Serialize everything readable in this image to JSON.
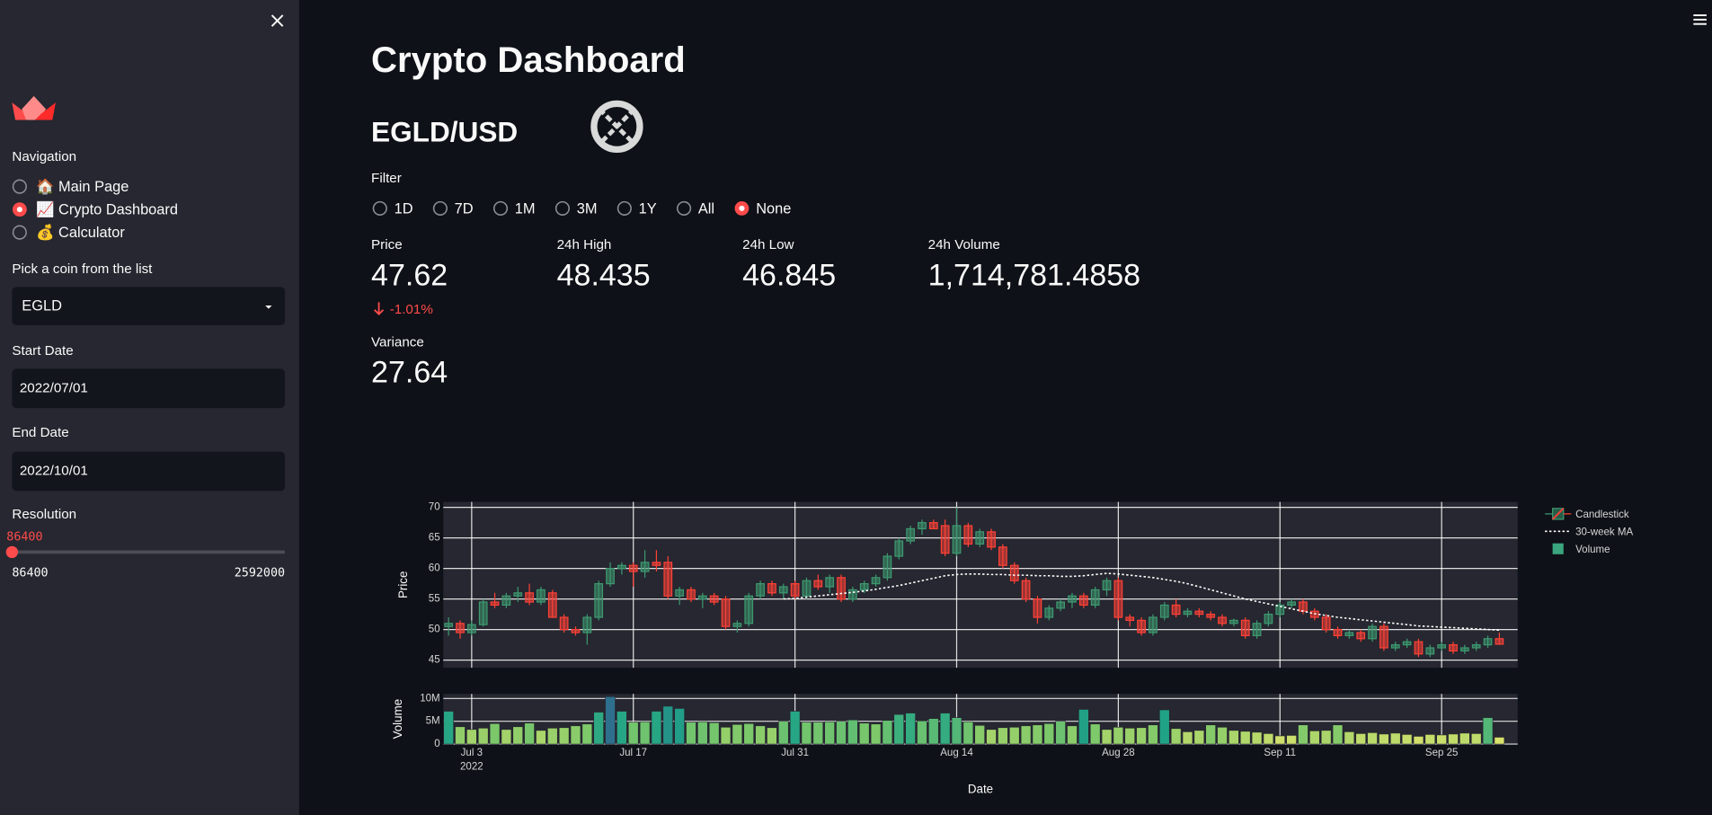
{
  "sidebar": {
    "nav_label": "Navigation",
    "nav_options": [
      "🏠 Main Page",
      "📈 Crypto Dashboard",
      "💰 Calculator"
    ],
    "nav_selected": 1,
    "coin_label": "Pick a coin from the list",
    "coin": "EGLD",
    "start_label": "Start Date",
    "start": "2022/07/01",
    "end_label": "End Date",
    "end": "2022/10/01",
    "resolution": {
      "label": "Resolution",
      "value": 86400,
      "min": 86400,
      "max": 2592000
    }
  },
  "main": {
    "title": "Crypto Dashboard",
    "pair": "EGLD/USD",
    "filter_label": "Filter",
    "filter_options": [
      "1D",
      "7D",
      "1M",
      "3M",
      "1Y",
      "All",
      "None"
    ],
    "filter_selected": 6,
    "metrics": [
      {
        "label": "Price",
        "value": "47.62",
        "delta": "-1.01%"
      },
      {
        "label": "24h High",
        "value": "48.435"
      },
      {
        "label": "24h Low",
        "value": "46.845"
      },
      {
        "label": "24h Volume",
        "value": "1,714,781.4858"
      }
    ],
    "variance": {
      "label": "Variance",
      "value": "27.64"
    }
  },
  "chart_data": {
    "type": "candlestick",
    "xlabel": "Date",
    "x_year": "2022",
    "xlim": [
      "2022-06-30T13:00:00Z",
      "2022-10-01T14:00:00Z"
    ],
    "xticks": [
      {
        "value": "2022-07-03",
        "label": "Jul 3"
      },
      {
        "value": "2022-07-17",
        "label": "Jul 17"
      },
      {
        "value": "2022-07-31",
        "label": "Jul 31"
      },
      {
        "value": "2022-08-14",
        "label": "Aug 14"
      },
      {
        "value": "2022-08-28",
        "label": "Aug 28"
      },
      {
        "value": "2022-09-11",
        "label": "Sep 11"
      },
      {
        "value": "2022-09-25",
        "label": "Sep 25"
      }
    ],
    "grid": true,
    "x": [
      "2022-07-01",
      "2022-07-02",
      "2022-07-03",
      "2022-07-04",
      "2022-07-05",
      "2022-07-06",
      "2022-07-07",
      "2022-07-08",
      "2022-07-09",
      "2022-07-10",
      "2022-07-11",
      "2022-07-12",
      "2022-07-13",
      "2022-07-14",
      "2022-07-15",
      "2022-07-16",
      "2022-07-17",
      "2022-07-18",
      "2022-07-19",
      "2022-07-20",
      "2022-07-21",
      "2022-07-22",
      "2022-07-23",
      "2022-07-24",
      "2022-07-25",
      "2022-07-26",
      "2022-07-27",
      "2022-07-28",
      "2022-07-29",
      "2022-07-30",
      "2022-07-31",
      "2022-08-01",
      "2022-08-02",
      "2022-08-03",
      "2022-08-04",
      "2022-08-05",
      "2022-08-06",
      "2022-08-07",
      "2022-08-08",
      "2022-08-09",
      "2022-08-10",
      "2022-08-11",
      "2022-08-12",
      "2022-08-13",
      "2022-08-14",
      "2022-08-15",
      "2022-08-16",
      "2022-08-17",
      "2022-08-18",
      "2022-08-19",
      "2022-08-20",
      "2022-08-21",
      "2022-08-22",
      "2022-08-23",
      "2022-08-24",
      "2022-08-25",
      "2022-08-26",
      "2022-08-27",
      "2022-08-28",
      "2022-08-29",
      "2022-08-30",
      "2022-08-31",
      "2022-09-01",
      "2022-09-02",
      "2022-09-03",
      "2022-09-04",
      "2022-09-05",
      "2022-09-06",
      "2022-09-07",
      "2022-09-08",
      "2022-09-09",
      "2022-09-10",
      "2022-09-11",
      "2022-09-12",
      "2022-09-13",
      "2022-09-14",
      "2022-09-15",
      "2022-09-16",
      "2022-09-17",
      "2022-09-18",
      "2022-09-19",
      "2022-09-20",
      "2022-09-21",
      "2022-09-22",
      "2022-09-23",
      "2022-09-24",
      "2022-09-25",
      "2022-09-26",
      "2022-09-27",
      "2022-09-28",
      "2022-09-29",
      "2022-09-30"
    ],
    "price": {
      "name": "Candlestick",
      "ylabel": "Price",
      "ylim": [
        43.75,
        70.9
      ],
      "yticks": [
        45,
        50,
        55,
        60,
        65,
        70
      ],
      "increasing_color": "#3d9970",
      "decreasing_color": "#ff4136",
      "open": [
        50.5,
        51,
        49.5,
        50.8,
        54.5,
        54,
        55.5,
        56,
        54.5,
        56,
        52,
        50,
        49.5,
        52,
        57.5,
        60,
        60.5,
        59.5,
        61,
        61,
        55.5,
        56.5,
        55,
        55.5,
        55,
        50.5,
        51,
        55.5,
        57.5,
        56,
        57.5,
        55.5,
        58,
        57,
        58.5,
        55,
        56.5,
        57.5,
        58.5,
        62,
        64.5,
        66.5,
        67.5,
        67,
        62.5,
        67,
        64,
        66,
        63.5,
        60.5,
        58,
        55,
        52,
        53.5,
        54.5,
        55.5,
        54,
        56.5,
        58,
        52,
        51.5,
        49.5,
        52,
        54,
        52.5,
        53,
        52.5,
        52,
        51,
        51.5,
        49,
        51,
        52.5,
        54,
        54.5,
        53,
        52,
        50,
        49,
        49.5,
        48.5,
        50.5,
        47,
        47.5,
        48,
        46,
        47,
        47.5,
        46.5,
        47,
        47.5,
        48.5
      ],
      "high": [
        52,
        51.5,
        51.5,
        55,
        56,
        56,
        57,
        57.5,
        57,
        56.5,
        52.5,
        50.5,
        52.5,
        58,
        61,
        61,
        61,
        63,
        63,
        62,
        57,
        57,
        56,
        56,
        55.5,
        51.5,
        56,
        58,
        58,
        57.5,
        58,
        58.5,
        59,
        59,
        59,
        57,
        58,
        59,
        62.5,
        65,
        67,
        68,
        68,
        68,
        70,
        67.5,
        66.5,
        66.5,
        64,
        61,
        58.5,
        55.5,
        54,
        55,
        56,
        56,
        57,
        58.5,
        58.5,
        52.5,
        52,
        52.5,
        54.5,
        55,
        53.5,
        53.5,
        53,
        52.5,
        51.8,
        52,
        51.5,
        53,
        54.5,
        55,
        55,
        53.5,
        52.5,
        50.5,
        50,
        50,
        51,
        51,
        48,
        48.5,
        48.5,
        47.5,
        48,
        48,
        47.5,
        48,
        49,
        49.5
      ],
      "low": [
        49,
        48.5,
        49,
        50.5,
        53.5,
        53.5,
        54.5,
        54,
        54,
        52,
        49.5,
        49,
        47.5,
        51.5,
        57,
        59,
        57,
        58.5,
        59.5,
        55,
        54,
        54.5,
        53.5,
        54,
        50,
        49.5,
        50.5,
        55,
        55.5,
        55,
        55,
        55,
        56.5,
        56,
        54.5,
        54.5,
        56,
        57,
        58,
        61.5,
        64,
        65.5,
        66.5,
        62,
        62,
        63.5,
        63.5,
        63,
        60,
        57.5,
        54.5,
        51,
        51.5,
        53,
        53.5,
        53.5,
        53.5,
        55.5,
        51.5,
        50.5,
        49,
        49,
        51.5,
        52,
        52,
        52,
        51.5,
        50.5,
        50.5,
        48.5,
        48.5,
        50.5,
        52,
        53.5,
        52.5,
        51.5,
        49.5,
        48.5,
        48.5,
        48,
        48,
        46.5,
        46.5,
        47,
        45.5,
        45.5,
        46.5,
        46,
        46,
        46.5,
        47,
        47.5
      ],
      "close": [
        51,
        49.5,
        50.8,
        54.5,
        54,
        55.5,
        56,
        54.5,
        56.5,
        52,
        50,
        49.5,
        52,
        57.5,
        60,
        60.5,
        59.5,
        61,
        60.5,
        55.5,
        56.5,
        55,
        55.5,
        54.5,
        50.5,
        51,
        55.5,
        57.5,
        56,
        57,
        55.5,
        58,
        57,
        58.5,
        55,
        56.5,
        57.5,
        58.5,
        62,
        64.5,
        66.5,
        67.5,
        66.5,
        62.5,
        67,
        64,
        66,
        63.5,
        60.5,
        58,
        55,
        52,
        53.5,
        54.5,
        55.5,
        54,
        56.5,
        58,
        52,
        51.5,
        49.5,
        52,
        54,
        52.5,
        53,
        52.5,
        52,
        51,
        51.5,
        49,
        51,
        52.5,
        54,
        54.5,
        53,
        52,
        50,
        49,
        49.5,
        48.5,
        50.5,
        47,
        47.5,
        48,
        46,
        47,
        47.5,
        46.5,
        47,
        47.5,
        48.5,
        47.6
      ]
    },
    "ma": {
      "name": "30-week MA",
      "color": "#ffffff",
      "values": [
        null,
        null,
        null,
        null,
        null,
        null,
        null,
        null,
        null,
        null,
        null,
        null,
        null,
        null,
        null,
        null,
        null,
        null,
        null,
        null,
        null,
        null,
        null,
        null,
        null,
        null,
        null,
        null,
        null,
        55.0,
        55.1,
        55.3,
        55.5,
        55.7,
        55.9,
        56.1,
        56.3,
        56.6,
        56.9,
        57.2,
        57.6,
        58.0,
        58.4,
        58.8,
        59.0,
        59.1,
        59.1,
        59.0,
        59.0,
        58.9,
        58.9,
        58.8,
        58.8,
        58.7,
        58.7,
        58.8,
        59.0,
        59.2,
        59.1,
        58.9,
        58.7,
        58.5,
        58.2,
        57.9,
        57.5,
        57.0,
        56.5,
        56.0,
        55.5,
        55.0,
        54.6,
        54.2,
        53.8,
        53.4,
        53.0,
        52.6,
        52.3,
        52.0,
        51.8,
        51.6,
        51.4,
        51.2,
        51.0,
        50.8,
        50.6,
        50.5,
        50.4,
        50.3,
        50.2,
        50.1,
        50.0,
        49.9
      ]
    },
    "volume": {
      "name": "Volume",
      "ylabel": "Volume",
      "ylim": [
        0,
        11
      ],
      "yticks": [
        0,
        {
          "value": 5,
          "label": "5M"
        },
        {
          "value": 10,
          "label": "10M"
        }
      ],
      "legend_color": "#3aa57f",
      "colorscale": [
        "#d8e26b",
        "#7cc86a",
        "#20a386",
        "#2e6f8e"
      ],
      "values": [
        7.2,
        3.8,
        3.2,
        3.5,
        4.5,
        3.2,
        3.8,
        4.6,
        3.0,
        3.5,
        3.6,
        4.0,
        4.4,
        7.0,
        10.4,
        7.2,
        4.8,
        4.9,
        7.2,
        8.3,
        7.8,
        4.8,
        4.9,
        4.7,
        3.7,
        4.3,
        4.5,
        4.0,
        3.6,
        5.0,
        7.2,
        4.8,
        4.8,
        4.9,
        5.0,
        5.3,
        4.6,
        4.4,
        5.2,
        6.5,
        6.8,
        5.1,
        5.6,
        6.8,
        5.8,
        4.9,
        4.1,
        3.2,
        3.6,
        3.7,
        4.0,
        4.2,
        4.5,
        5.0,
        4.0,
        7.6,
        4.4,
        3.2,
        3.7,
        3.5,
        3.6,
        4.2,
        7.5,
        3.4,
        2.7,
        3.0,
        4.2,
        3.7,
        3.0,
        2.8,
        2.6,
        2.3,
        1.8,
        1.9,
        4.2,
        2.9,
        3.0,
        4.2,
        2.7,
        2.3,
        2.5,
        2.2,
        2.4,
        2.1,
        1.7,
        2.1,
        2.0,
        2.2,
        2.4,
        2.3,
        5.8,
        1.5
      ]
    }
  }
}
